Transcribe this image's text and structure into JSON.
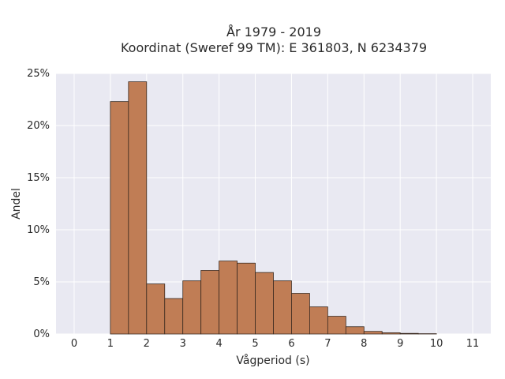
{
  "chart_data": {
    "type": "bar",
    "title": [
      "År 1979 - 2019",
      "Koordinat (Sweref 99 TM): E 361803, N 6234379"
    ],
    "xlabel": "Vågperiod (s)",
    "ylabel": "Andel",
    "xlim": [
      -0.5,
      11.5
    ],
    "ylim": [
      0,
      25
    ],
    "x_ticks": [
      0,
      1,
      2,
      3,
      4,
      5,
      6,
      7,
      8,
      9,
      10,
      11
    ],
    "y_ticks": [
      0,
      5,
      10,
      15,
      20,
      25
    ],
    "y_tick_labels": [
      "0%",
      "5%",
      "10%",
      "15%",
      "20%",
      "25%"
    ],
    "bin_width": 0.5,
    "bin_starts": [
      1.0,
      1.5,
      2.0,
      2.5,
      3.0,
      3.5,
      4.0,
      4.5,
      5.0,
      5.5,
      6.0,
      6.5,
      7.0,
      7.5,
      8.0,
      8.5,
      9.0,
      9.5
    ],
    "values": [
      22.3,
      24.2,
      4.8,
      3.4,
      5.1,
      6.1,
      7.0,
      6.8,
      5.9,
      5.1,
      3.9,
      2.6,
      1.7,
      0.7,
      0.25,
      0.12,
      0.06,
      0.03
    ],
    "grid": true,
    "colors": {
      "background": "#e9e9f2",
      "grid": "#ffffff",
      "bar_fill": "#c07d55",
      "bar_edge": "#3a2a20"
    }
  }
}
